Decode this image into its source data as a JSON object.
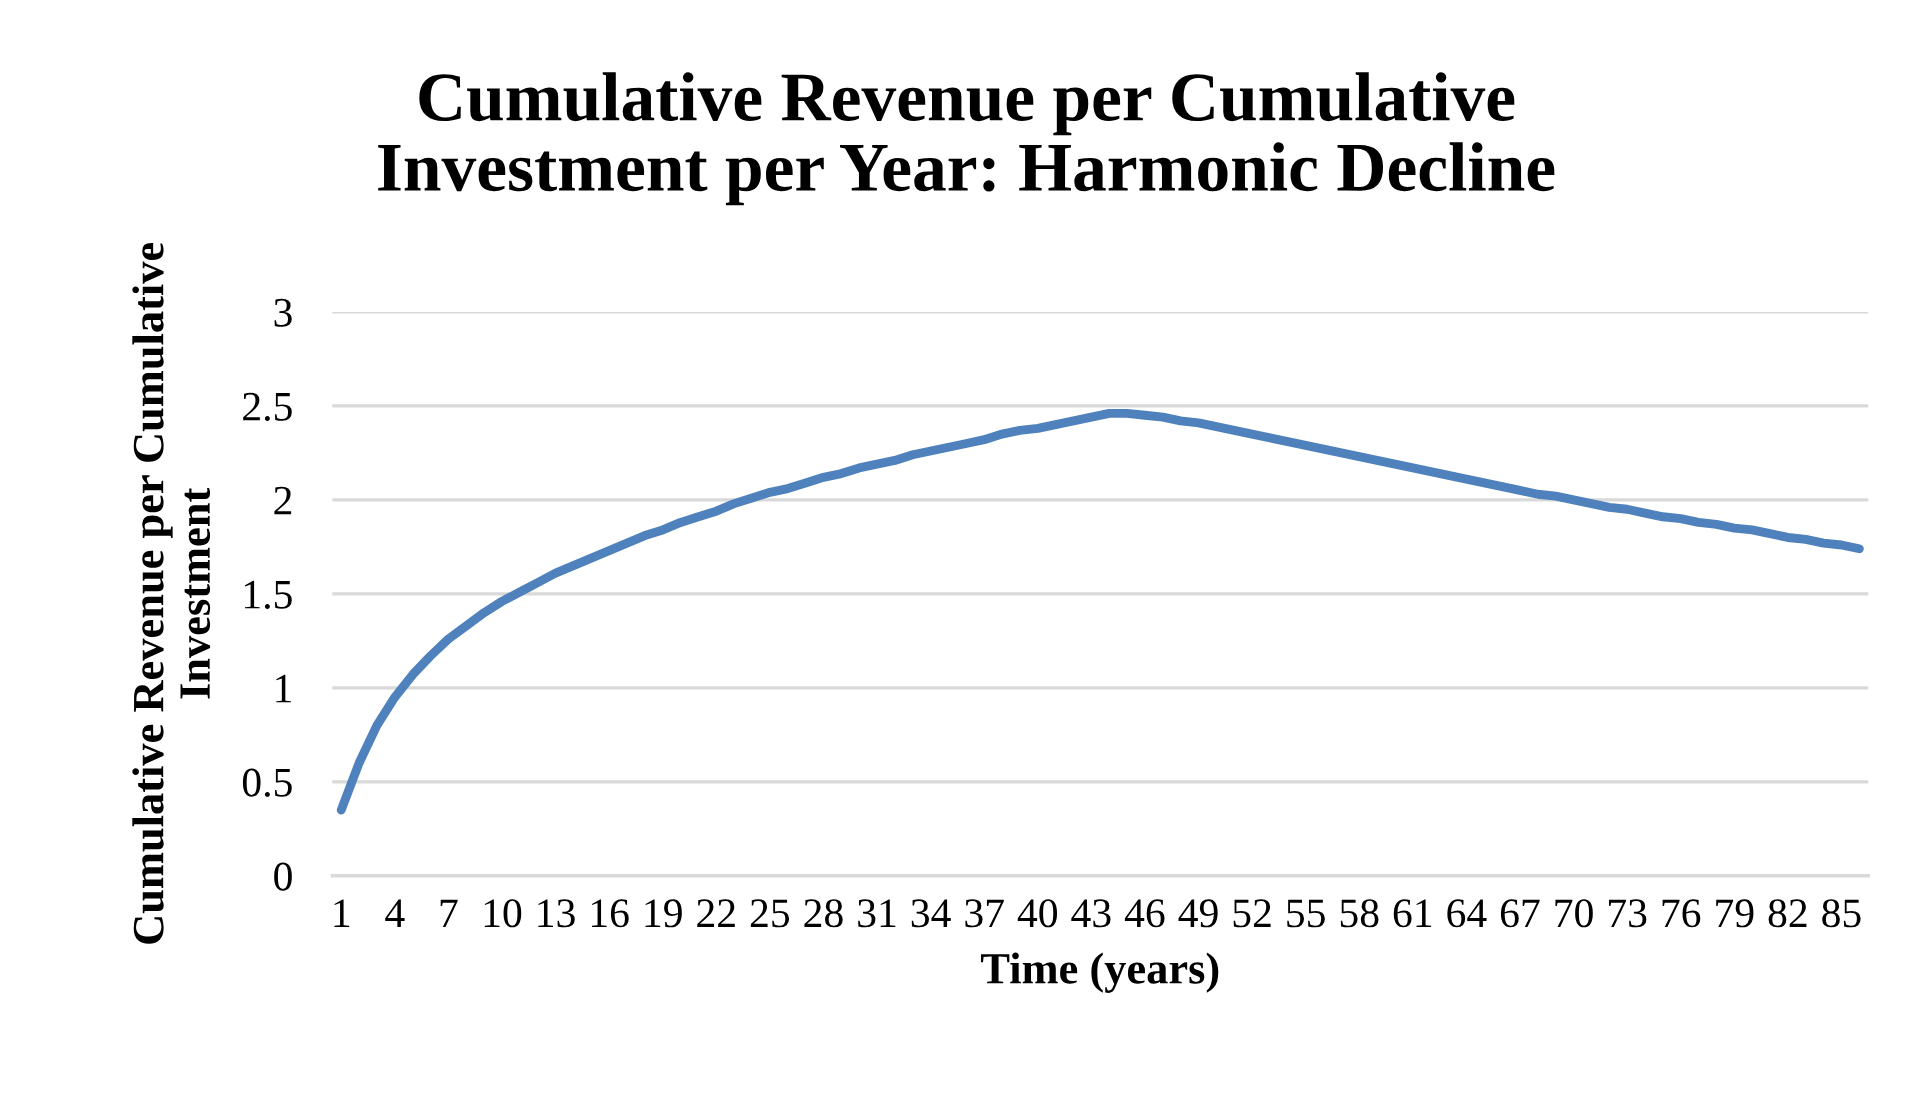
{
  "chart_data": {
    "type": "line",
    "title": "Cumulative Revenue per Cumulative\nInvestment per Year: Harmonic Decline",
    "xlabel": "Time (years)",
    "ylabel": "Cumulative Revenue per Cumulative\nInvestment",
    "categories": [
      "1",
      null,
      null,
      "4",
      null,
      null,
      "7",
      null,
      null,
      "10",
      null,
      null,
      "13",
      null,
      null,
      "16",
      null,
      null,
      "19",
      null,
      null,
      "22",
      null,
      null,
      "25",
      null,
      null,
      "28",
      null,
      null,
      "31",
      null,
      null,
      "34",
      null,
      null,
      "37",
      null,
      null,
      "40",
      null,
      null,
      "43",
      null,
      null,
      "46",
      null,
      null,
      "49",
      null,
      null,
      "52",
      null,
      null,
      "55",
      null,
      null,
      "58",
      null,
      null,
      "61",
      null,
      null,
      "64",
      null,
      null,
      "67",
      null,
      null,
      "70",
      null,
      null,
      "73",
      null,
      null,
      "76",
      null,
      null,
      "79",
      null,
      null,
      "82",
      null,
      null,
      "85",
      null
    ],
    "series": [
      {
        "color": "#4f81bd",
        "values": [
          0.35,
          0.6,
          0.8,
          0.95,
          1.07,
          1.17,
          1.26,
          1.33,
          1.4,
          1.46,
          1.51,
          1.56,
          1.61,
          1.65,
          1.69,
          1.73,
          1.77,
          1.81,
          1.84,
          1.88,
          1.91,
          1.94,
          1.98,
          2.01,
          2.04,
          2.06,
          2.09,
          2.12,
          2.14,
          2.17,
          2.19,
          2.21,
          2.24,
          2.26,
          2.28,
          2.3,
          2.32,
          2.35,
          2.37,
          2.38,
          2.4,
          2.42,
          2.44,
          2.46,
          2.46,
          2.45,
          2.44,
          2.42,
          2.41,
          2.39,
          2.37,
          2.35,
          2.33,
          2.31,
          2.29,
          2.27,
          2.25,
          2.23,
          2.21,
          2.19,
          2.17,
          2.15,
          2.13,
          2.11,
          2.09,
          2.07,
          2.05,
          2.03,
          2.02,
          2.0,
          1.98,
          1.96,
          1.95,
          1.93,
          1.91,
          1.9,
          1.88,
          1.87,
          1.85,
          1.84,
          1.82,
          1.8,
          1.79,
          1.77,
          1.76,
          1.74
        ]
      }
    ],
    "ylim": [
      0,
      3
    ],
    "yticks": [
      0,
      0.5,
      1,
      1.5,
      2,
      2.5,
      3
    ],
    "grid": "y",
    "legend": false,
    "marker": "none",
    "line_style": "solid"
  }
}
